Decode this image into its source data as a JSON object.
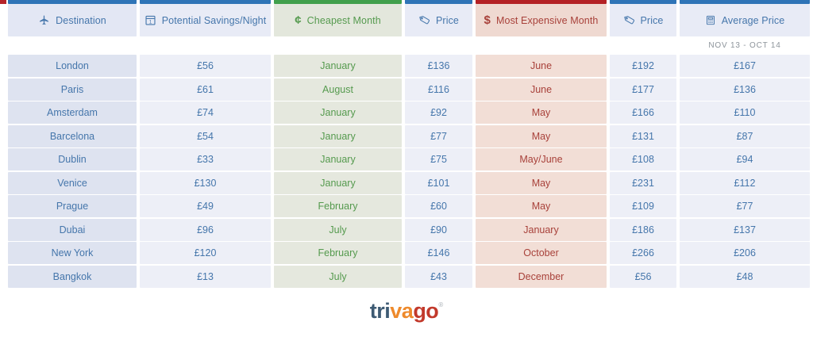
{
  "decor": {
    "left_edge_accent_color": "#b6242a"
  },
  "table": {
    "columns": [
      {
        "id": "destination",
        "label": "Destination",
        "icon": "plane-icon",
        "bar_color": "#2e74b7",
        "header_bg": "#e3e7f4",
        "cell_bg": "#dee3f0",
        "text_color": "#4576ab"
      },
      {
        "id": "savings",
        "label": "Potential Savings/Night",
        "icon": "calendar-1-icon",
        "bar_color": "#2e74b7",
        "header_bg": "#e8ebf6",
        "cell_bg": "#edeff7",
        "text_color": "#4576ab"
      },
      {
        "id": "cheapest_month",
        "label": "Cheapest Month",
        "icon": "cent-icon",
        "bar_color": "#41a04c",
        "header_bg": "#e3e7dc",
        "cell_bg": "#e5e8de",
        "text_color": "#559a4e"
      },
      {
        "id": "cheapest_price",
        "label": "Price",
        "icon": "tag-icon",
        "bar_color": "#2e74b7",
        "header_bg": "#e8ebf6",
        "cell_bg": "#edeff7",
        "text_color": "#4576ab"
      },
      {
        "id": "expensive_month",
        "label": "Most Expensive Month",
        "icon": "dollar-icon",
        "bar_color": "#b42125",
        "header_bg": "#efd9d1",
        "cell_bg": "#f2ded6",
        "text_color": "#a8413a"
      },
      {
        "id": "expensive_price",
        "label": "Price",
        "icon": "tag-icon",
        "bar_color": "#2e74b7",
        "header_bg": "#e8ebf6",
        "cell_bg": "#edeff7",
        "text_color": "#4576ab"
      },
      {
        "id": "average_price",
        "label": "Average Price",
        "icon": "calculator-icon",
        "bar_color": "#2e74b7",
        "header_bg": "#e8ebf6",
        "cell_bg": "#edeff7",
        "text_color": "#4576ab"
      }
    ],
    "date_range_note": "NOV 13 - OCT 14",
    "rows": [
      {
        "destination": "London",
        "savings": "£56",
        "cheapest_month": "January",
        "cheapest_price": "£136",
        "expensive_month": "June",
        "expensive_price": "£192",
        "average_price": "£167"
      },
      {
        "destination": "Paris",
        "savings": "£61",
        "cheapest_month": "August",
        "cheapest_price": "£116",
        "expensive_month": "June",
        "expensive_price": "£177",
        "average_price": "£136"
      },
      {
        "destination": "Amsterdam",
        "savings": "£74",
        "cheapest_month": "January",
        "cheapest_price": "£92",
        "expensive_month": "May",
        "expensive_price": "£166",
        "average_price": "£110"
      },
      {
        "destination": "Barcelona",
        "savings": "£54",
        "cheapest_month": "January",
        "cheapest_price": "£77",
        "expensive_month": "May",
        "expensive_price": "£131",
        "average_price": "£87"
      },
      {
        "destination": "Dublin",
        "savings": "£33",
        "cheapest_month": "January",
        "cheapest_price": "£75",
        "expensive_month": "May/June",
        "expensive_price": "£108",
        "average_price": "£94"
      },
      {
        "destination": "Venice",
        "savings": "£130",
        "cheapest_month": "January",
        "cheapest_price": "£101",
        "expensive_month": "May",
        "expensive_price": "£231",
        "average_price": "£112"
      },
      {
        "destination": "Prague",
        "savings": "£49",
        "cheapest_month": "February",
        "cheapest_price": "£60",
        "expensive_month": "May",
        "expensive_price": "£109",
        "average_price": "£77"
      },
      {
        "destination": "Dubai",
        "savings": "£96",
        "cheapest_month": "July",
        "cheapest_price": "£90",
        "expensive_month": "January",
        "expensive_price": "£186",
        "average_price": "£137"
      },
      {
        "destination": "New York",
        "savings": "£120",
        "cheapest_month": "February",
        "cheapest_price": "£146",
        "expensive_month": "October",
        "expensive_price": "£266",
        "average_price": "£206"
      },
      {
        "destination": "Bangkok",
        "savings": "£13",
        "cheapest_month": "July",
        "cheapest_price": "£43",
        "expensive_month": "December",
        "expensive_price": "£56",
        "average_price": "£48"
      }
    ]
  },
  "chart_data": {
    "type": "table",
    "title": "",
    "note": "NOV 13 - OCT 14",
    "columns": [
      "Destination",
      "Potential Savings/Night",
      "Cheapest Month",
      "Price",
      "Most Expensive Month",
      "Price",
      "Average Price"
    ],
    "rows": [
      [
        "London",
        "£56",
        "January",
        "£136",
        "June",
        "£192",
        "£167"
      ],
      [
        "Paris",
        "£61",
        "August",
        "£116",
        "June",
        "£177",
        "£136"
      ],
      [
        "Amsterdam",
        "£74",
        "January",
        "£92",
        "May",
        "£166",
        "£110"
      ],
      [
        "Barcelona",
        "£54",
        "January",
        "£77",
        "May",
        "£131",
        "£87"
      ],
      [
        "Dublin",
        "£33",
        "January",
        "£75",
        "May/June",
        "£108",
        "£94"
      ],
      [
        "Venice",
        "£130",
        "January",
        "£101",
        "May",
        "£231",
        "£112"
      ],
      [
        "Prague",
        "£49",
        "February",
        "£60",
        "May",
        "£109",
        "£77"
      ],
      [
        "Dubai",
        "£96",
        "July",
        "£90",
        "January",
        "£186",
        "£137"
      ],
      [
        "New York",
        "£120",
        "February",
        "£146",
        "October",
        "£266",
        "£206"
      ],
      [
        "Bangkok",
        "£13",
        "July",
        "£43",
        "December",
        "£56",
        "£48"
      ]
    ]
  },
  "footer": {
    "logo": {
      "segments": [
        {
          "text": "tri",
          "color": "#3d5a73"
        },
        {
          "text": "va",
          "color": "#ee8a2c"
        },
        {
          "text": "go",
          "color": "#c2392b"
        }
      ],
      "registered_mark": "®"
    }
  }
}
